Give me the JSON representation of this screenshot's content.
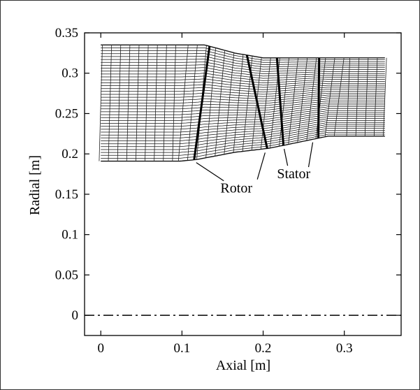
{
  "chart_data": {
    "type": "diagram",
    "xlabel": "Axial [m]",
    "ylabel": "Radial [m]",
    "xlim": [
      -0.02,
      0.37
    ],
    "ylim": [
      -0.025,
      0.35
    ],
    "x_ticks": [
      "0",
      "0.1",
      "0.2",
      "0.3"
    ],
    "x_tick_values": [
      0,
      0.1,
      0.2,
      0.3
    ],
    "y_ticks": [
      "0",
      "0.05",
      "0.1",
      "0.15",
      "0.2",
      "0.25",
      "0.3",
      "0.35"
    ],
    "y_tick_values": [
      0,
      0.05,
      0.1,
      0.15,
      0.2,
      0.25,
      0.3,
      0.35
    ],
    "annotations": [
      {
        "text": "Rotor",
        "x": 0.167,
        "y": 0.158
      },
      {
        "text": "Stator",
        "x": 0.229,
        "y": 0.175
      }
    ],
    "mesh": {
      "hub": [
        [
          0,
          0.191
        ],
        [
          0.097,
          0.191
        ],
        [
          0.118,
          0.193
        ],
        [
          0.165,
          0.202
        ],
        [
          0.207,
          0.207
        ],
        [
          0.232,
          0.212
        ],
        [
          0.28,
          0.222
        ],
        [
          0.35,
          0.222
        ]
      ],
      "casing": [
        [
          0,
          0.335
        ],
        [
          0.115,
          0.335
        ],
        [
          0.128,
          0.335
        ],
        [
          0.165,
          0.325
        ],
        [
          0.2,
          0.319
        ],
        [
          0.35,
          0.319
        ]
      ],
      "blades": [
        {
          "x_le_tip": 0.134,
          "x_te_hub": 0.115,
          "label": "Rotor"
        },
        {
          "x_le_tip": 0.18,
          "x_te_hub": 0.205,
          "label": "Rotor"
        },
        {
          "x_le_tip": 0.217,
          "x_te_hub": 0.225,
          "label": "Stator"
        },
        {
          "x_le_tip": 0.269,
          "x_te_hub": 0.268,
          "label": "Stator"
        }
      ],
      "radial_lines": 41,
      "axial_stations": 32,
      "centerline_y": 0
    }
  }
}
